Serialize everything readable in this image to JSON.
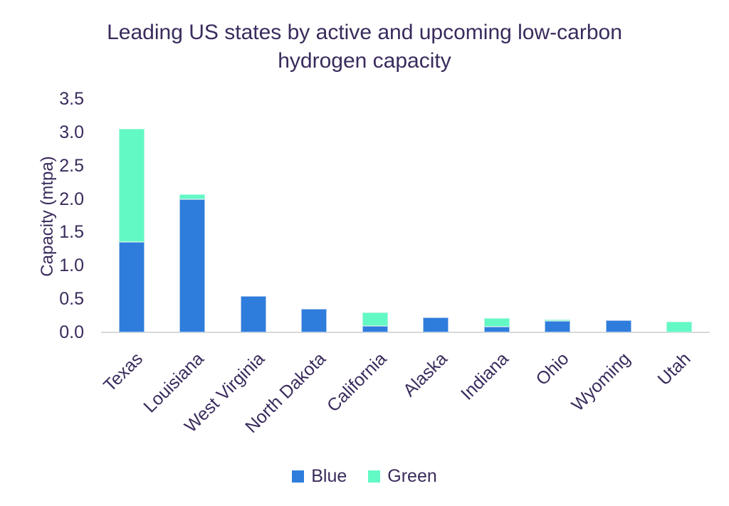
{
  "title": "Leading US states by active and upcoming low-carbon hydrogen capacity",
  "chart_data": {
    "type": "bar",
    "stacked": true,
    "title": "Leading US states by active and upcoming low-carbon hydrogen capacity",
    "xlabel": "",
    "ylabel": "Capacity (mtpa)",
    "ylim": [
      0,
      3.5
    ],
    "ytick_step": 0.5,
    "yticks": [
      "0.0",
      "0.5",
      "1.0",
      "1.5",
      "2.0",
      "2.5",
      "3.0",
      "3.5"
    ],
    "grid": false,
    "legend_position": "bottom",
    "categories": [
      "Texas",
      "Louisiana",
      "West Virginia",
      "North Dakota",
      "California",
      "Alaska",
      "Indiana",
      "Ohio",
      "Wyoming",
      "Utah"
    ],
    "series": [
      {
        "name": "Blue",
        "color": "#2e7ddc",
        "border_color": "#a6c5ec",
        "values": [
          1.35,
          2.0,
          0.54,
          0.35,
          0.1,
          0.22,
          0.09,
          0.17,
          0.18,
          0
        ]
      },
      {
        "name": "Green",
        "color": "#63f9c5",
        "border_color": "#adf6db",
        "values": [
          1.7,
          0.07,
          0,
          0,
          0.2,
          0,
          0.12,
          0.02,
          0,
          0.16
        ]
      }
    ],
    "totals": [
      3.05,
      2.07,
      0.54,
      0.35,
      0.3,
      0.22,
      0.21,
      0.19,
      0.18,
      0.16
    ]
  },
  "colors": {
    "text": "#3a2b5c",
    "axis_line": "#d9d9d9",
    "background": "#ffffff",
    "blue_series": "#2e7ddc",
    "green_series": "#63f9c5"
  }
}
